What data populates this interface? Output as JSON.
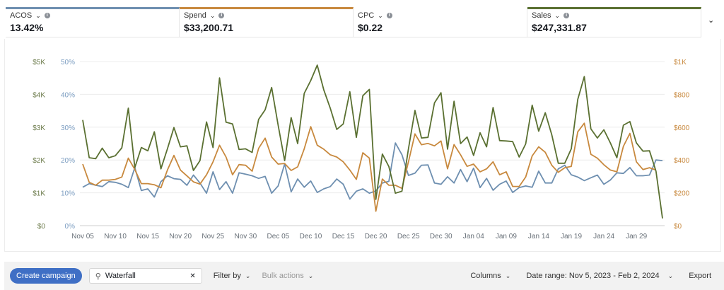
{
  "metrics": [
    {
      "label": "ACOS",
      "value": "13.42%",
      "color": "#6e8fb0"
    },
    {
      "label": "Spend",
      "value": "$33,200.71",
      "color": "#c8893e"
    },
    {
      "label": "CPC",
      "value": "$0.22",
      "color": ""
    },
    {
      "label": "Sales",
      "value": "$247,331.87",
      "color": "#5a7031"
    }
  ],
  "toolbar": {
    "create_campaign": "Create campaign",
    "search_value": "Waterfall",
    "clear": "✕",
    "filter_by": "Filter by",
    "bulk_actions": "Bulk actions",
    "columns": "Columns",
    "date_range": "Date range: Nov 5, 2023 - Feb 2, 2024",
    "export": "Export"
  },
  "chart_data": {
    "type": "line",
    "grid": true,
    "x": [
      "Nov 05",
      "Nov 06",
      "Nov 07",
      "Nov 08",
      "Nov 09",
      "Nov 10",
      "Nov 11",
      "Nov 12",
      "Nov 13",
      "Nov 14",
      "Nov 15",
      "Nov 16",
      "Nov 17",
      "Nov 18",
      "Nov 19",
      "Nov 20",
      "Nov 21",
      "Nov 22",
      "Nov 23",
      "Nov 24",
      "Nov 25",
      "Nov 26",
      "Nov 27",
      "Nov 28",
      "Nov 29",
      "Nov 30",
      "Dec 01",
      "Dec 02",
      "Dec 03",
      "Dec 04",
      "Dec 05",
      "Dec 06",
      "Dec 07",
      "Dec 08",
      "Dec 09",
      "Dec 10",
      "Dec 11",
      "Dec 12",
      "Dec 13",
      "Dec 14",
      "Dec 15",
      "Dec 16",
      "Dec 17",
      "Dec 18",
      "Dec 19",
      "Dec 20",
      "Dec 21",
      "Dec 22",
      "Dec 23",
      "Dec 24",
      "Dec 25",
      "Dec 26",
      "Dec 27",
      "Dec 28",
      "Dec 29",
      "Dec 30",
      "Dec 31",
      "Jan 01",
      "Jan 02",
      "Jan 03",
      "Jan 04",
      "Jan 05",
      "Jan 06",
      "Jan 07",
      "Jan 08",
      "Jan 09",
      "Jan 10",
      "Jan 11",
      "Jan 12",
      "Jan 13",
      "Jan 14",
      "Jan 15",
      "Jan 16",
      "Jan 17",
      "Jan 18",
      "Jan 19",
      "Jan 20",
      "Jan 21",
      "Jan 22",
      "Jan 23",
      "Jan 24",
      "Jan 25",
      "Jan 26",
      "Jan 27",
      "Jan 28",
      "Jan 29",
      "Jan 30",
      "Jan 31",
      "Feb 01",
      "Feb 02"
    ],
    "x_ticks": [
      "Nov 05",
      "Nov 10",
      "Nov 15",
      "Nov 20",
      "Nov 25",
      "Nov 30",
      "Dec 05",
      "Dec 10",
      "Dec 15",
      "Dec 20",
      "Dec 25",
      "Dec 30",
      "Jan 04",
      "Jan 09",
      "Jan 14",
      "Jan 19",
      "Jan 24",
      "Jan 29"
    ],
    "axes": {
      "sales": {
        "ticks": [
          "$0",
          "$1K",
          "$2K",
          "$3K",
          "$4K",
          "$5K"
        ],
        "range": [
          0,
          5000
        ],
        "color": "#6b7a4a"
      },
      "acos": {
        "ticks": [
          "0%",
          "10%",
          "20%",
          "30%",
          "40%",
          "50%"
        ],
        "range": [
          0,
          50
        ],
        "color": "#7a9cc0"
      },
      "spend": {
        "ticks": [
          "$0",
          "$200",
          "$400",
          "$600",
          "$800",
          "$1K"
        ],
        "range": [
          0,
          1000
        ],
        "color": "#c8893e"
      }
    },
    "series": [
      {
        "name": "Sales",
        "axis": "sales",
        "color": "#5a7031",
        "values": [
          3220,
          2070,
          2040,
          2360,
          2070,
          2130,
          2370,
          3580,
          1770,
          2380,
          2280,
          2860,
          1730,
          2340,
          2990,
          2400,
          2430,
          1680,
          1980,
          3160,
          2380,
          4500,
          3150,
          3100,
          2320,
          2340,
          2230,
          3240,
          3530,
          4210,
          3060,
          1980,
          3290,
          2500,
          4030,
          4420,
          4890,
          4140,
          3580,
          2930,
          3100,
          4080,
          2690,
          3960,
          4150,
          800,
          2180,
          1800,
          990,
          1050,
          2340,
          3510,
          2670,
          2690,
          3740,
          4050,
          2330,
          3790,
          2500,
          2700,
          2140,
          2830,
          2400,
          3600,
          2590,
          2580,
          2560,
          2090,
          2490,
          3670,
          2880,
          3440,
          2770,
          1900,
          1900,
          2340,
          3850,
          4540,
          2950,
          2670,
          2920,
          2520,
          2070,
          3060,
          3170,
          2520,
          2270,
          2280,
          1660,
          220
        ]
      },
      {
        "name": "Spend",
        "axis": "spend",
        "color": "#c8893e",
        "values": [
          375,
          264,
          246,
          277,
          277,
          282,
          296,
          411,
          342,
          256,
          256,
          249,
          231,
          339,
          428,
          339,
          303,
          267,
          253,
          310,
          389,
          490,
          418,
          310,
          372,
          368,
          332,
          471,
          533,
          418,
          375,
          379,
          336,
          358,
          468,
          603,
          490,
          466,
          432,
          418,
          389,
          339,
          282,
          444,
          411,
          88,
          284,
          246,
          246,
          227,
          389,
          559,
          493,
          501,
          486,
          516,
          346,
          494,
          432,
          361,
          375,
          328,
          346,
          389,
          310,
          328,
          239,
          239,
          296,
          425,
          480,
          447,
          368,
          325,
          353,
          361,
          572,
          624,
          435,
          411,
          371,
          339,
          328,
          483,
          562,
          389,
          342,
          353,
          339,
          null
        ]
      },
      {
        "name": "ACOS",
        "axis": "acos",
        "color": "#6e8fb0",
        "values": [
          11.7,
          12.8,
          12.3,
          11.9,
          13.4,
          13.2,
          12.6,
          11.6,
          17.7,
          10.7,
          11.2,
          8.7,
          13.4,
          15.2,
          14.3,
          14.1,
          12.3,
          15.4,
          13.0,
          9.9,
          16.4,
          11.0,
          13.4,
          9.9,
          16.1,
          15.7,
          15.2,
          14.4,
          15.0,
          9.9,
          12.1,
          18.8,
          10.3,
          14.2,
          11.7,
          13.6,
          10.1,
          11.2,
          11.9,
          14.2,
          12.6,
          8.1,
          10.5,
          11.2,
          9.9,
          10.6,
          13.0,
          13.5,
          25.2,
          21.6,
          15.3,
          16.0,
          18.4,
          18.5,
          13.0,
          12.6,
          14.9,
          13.0,
          17.1,
          13.4,
          17.5,
          11.6,
          14.4,
          10.8,
          12.6,
          13.6,
          10.1,
          11.6,
          12.1,
          11.7,
          16.6,
          13.0,
          13.0,
          17.3,
          18.4,
          15.5,
          14.8,
          13.7,
          14.6,
          15.4,
          12.6,
          13.9,
          16.1,
          15.9,
          17.7,
          15.2,
          15.2,
          15.4,
          20.0,
          19.8
        ]
      }
    ]
  }
}
